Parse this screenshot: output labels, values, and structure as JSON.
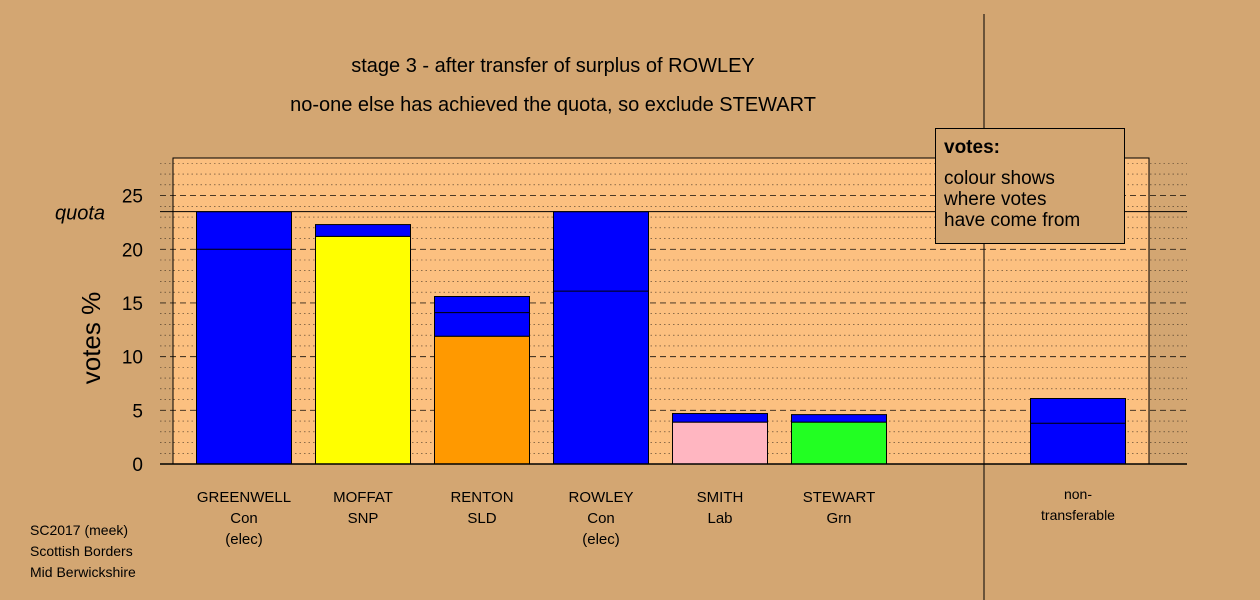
{
  "header": {
    "stage_text": "stage 3 - after transfer of surplus of ROWLEY",
    "note_text": "no-one else has achieved the quota, so exclude STEWART"
  },
  "legend": {
    "title": "votes:",
    "description": "colour shows\nwhere votes\nhave come from"
  },
  "footer": [
    "SC2017 (meek)",
    "Scottish Borders",
    "Mid Berwickshire"
  ],
  "chart_data": {
    "type": "bar",
    "stacked": true,
    "ylabel": "votes %",
    "ylim": [
      0,
      28.5
    ],
    "yticks": [
      0,
      5,
      10,
      15,
      20,
      25
    ],
    "quota": {
      "label": "quota",
      "value": 23.5
    },
    "grid": "dotted minor at every 1%, dashed major at every 5%",
    "colors": {
      "Con": "#0000ff",
      "SNP": "#ffff00",
      "SLD": "#ff9900",
      "Lab": "#ffb6c1",
      "Grn": "#22ff22",
      "plot_background": "#fcc080",
      "page_background": "#d3a672"
    },
    "candidates": [
      {
        "name": "GREENWELL",
        "party": "Con",
        "status": "(elec)",
        "segments": [
          {
            "from": "Con",
            "value": 23.5
          }
        ],
        "divider": 20.0
      },
      {
        "name": "MOFFAT",
        "party": "SNP",
        "status": "",
        "segments": [
          {
            "from": "SNP",
            "value": 21.2
          },
          {
            "from": "Con",
            "value": 1.1
          }
        ]
      },
      {
        "name": "RENTON",
        "party": "SLD",
        "status": "",
        "segments": [
          {
            "from": "SLD",
            "value": 11.9
          },
          {
            "from": "Con",
            "value": 3.7
          }
        ],
        "divider": 14.1
      },
      {
        "name": "ROWLEY",
        "party": "Con",
        "status": "(elec)",
        "segments": [
          {
            "from": "Con",
            "value": 23.5
          }
        ],
        "divider": 16.1
      },
      {
        "name": "SMITH",
        "party": "Lab",
        "status": "",
        "segments": [
          {
            "from": "Lab",
            "value": 3.9
          },
          {
            "from": "Con",
            "value": 0.8
          }
        ]
      },
      {
        "name": "STEWART",
        "party": "Grn",
        "status": "",
        "segments": [
          {
            "from": "Grn",
            "value": 3.9
          },
          {
            "from": "Con",
            "value": 0.7
          }
        ]
      }
    ],
    "non_transferable": {
      "label": "non-\ntransferable",
      "segments": [
        {
          "from": "Con",
          "value": 6.1
        }
      ],
      "divider": 3.8
    }
  }
}
